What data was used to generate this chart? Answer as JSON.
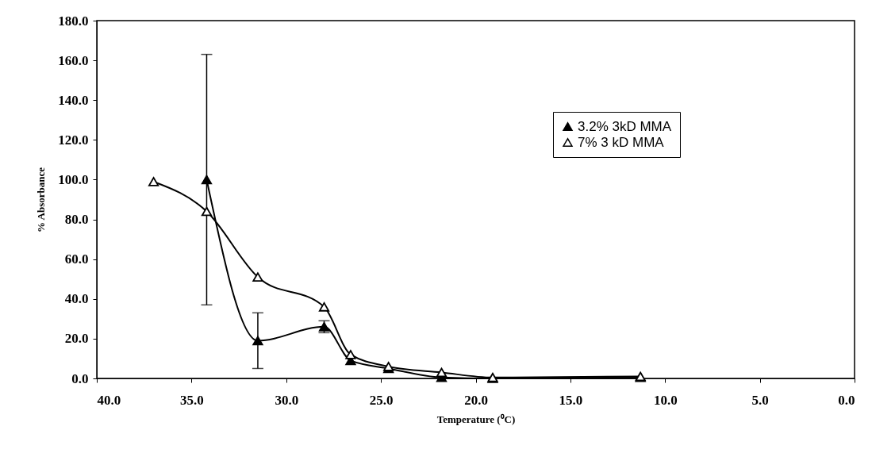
{
  "chart_data": {
    "type": "line",
    "xlabel": "Temperature (⁰C)",
    "ylabel": "% Absorbance",
    "xlim": [
      40,
      0
    ],
    "xticks": [
      {
        "value": 40,
        "label": "40.0"
      },
      {
        "value": 35,
        "label": "35.0"
      },
      {
        "value": 30,
        "label": "30.0"
      },
      {
        "value": 25,
        "label": "25.0"
      },
      {
        "value": 20,
        "label": "20.0"
      },
      {
        "value": 15,
        "label": "15.0"
      },
      {
        "value": 10,
        "label": "10.0"
      },
      {
        "value": 5,
        "label": "5.0"
      },
      {
        "value": 0,
        "label": "0.0"
      }
    ],
    "ylim": [
      0,
      180
    ],
    "yticks": [
      {
        "value": 0,
        "label": "0.0"
      },
      {
        "value": 20,
        "label": "20.0"
      },
      {
        "value": 40,
        "label": "40.0"
      },
      {
        "value": 60,
        "label": "60.0"
      },
      {
        "value": 80,
        "label": "80.0"
      },
      {
        "value": 100,
        "label": "100.0"
      },
      {
        "value": 120,
        "label": "120.0"
      },
      {
        "value": 140,
        "label": "140.0"
      },
      {
        "value": 160,
        "label": "160.0"
      },
      {
        "value": 180,
        "label": "180.0"
      }
    ],
    "grid": false,
    "legend": "top right",
    "marker": "triangle",
    "line_style": "solid",
    "series": [
      {
        "name": "3.2% 3kD MMA",
        "color": "#000000",
        "x": [
          34.2,
          31.5,
          28.0,
          26.6,
          24.6,
          21.8,
          19.1,
          11.3
        ],
        "values": [
          100,
          19,
          26,
          9,
          5,
          0.5,
          0,
          0.5
        ],
        "errors": [
          63,
          14,
          3,
          null,
          null,
          null,
          null,
          null
        ]
      },
      {
        "name": "7% 3 kD MMA",
        "color": "#000000",
        "x": [
          37.0,
          34.2,
          31.5,
          28.0,
          26.6,
          24.6,
          21.8,
          19.1,
          11.3
        ],
        "values": [
          99,
          84,
          51,
          36,
          12,
          6,
          3,
          0.5,
          1
        ]
      }
    ]
  }
}
